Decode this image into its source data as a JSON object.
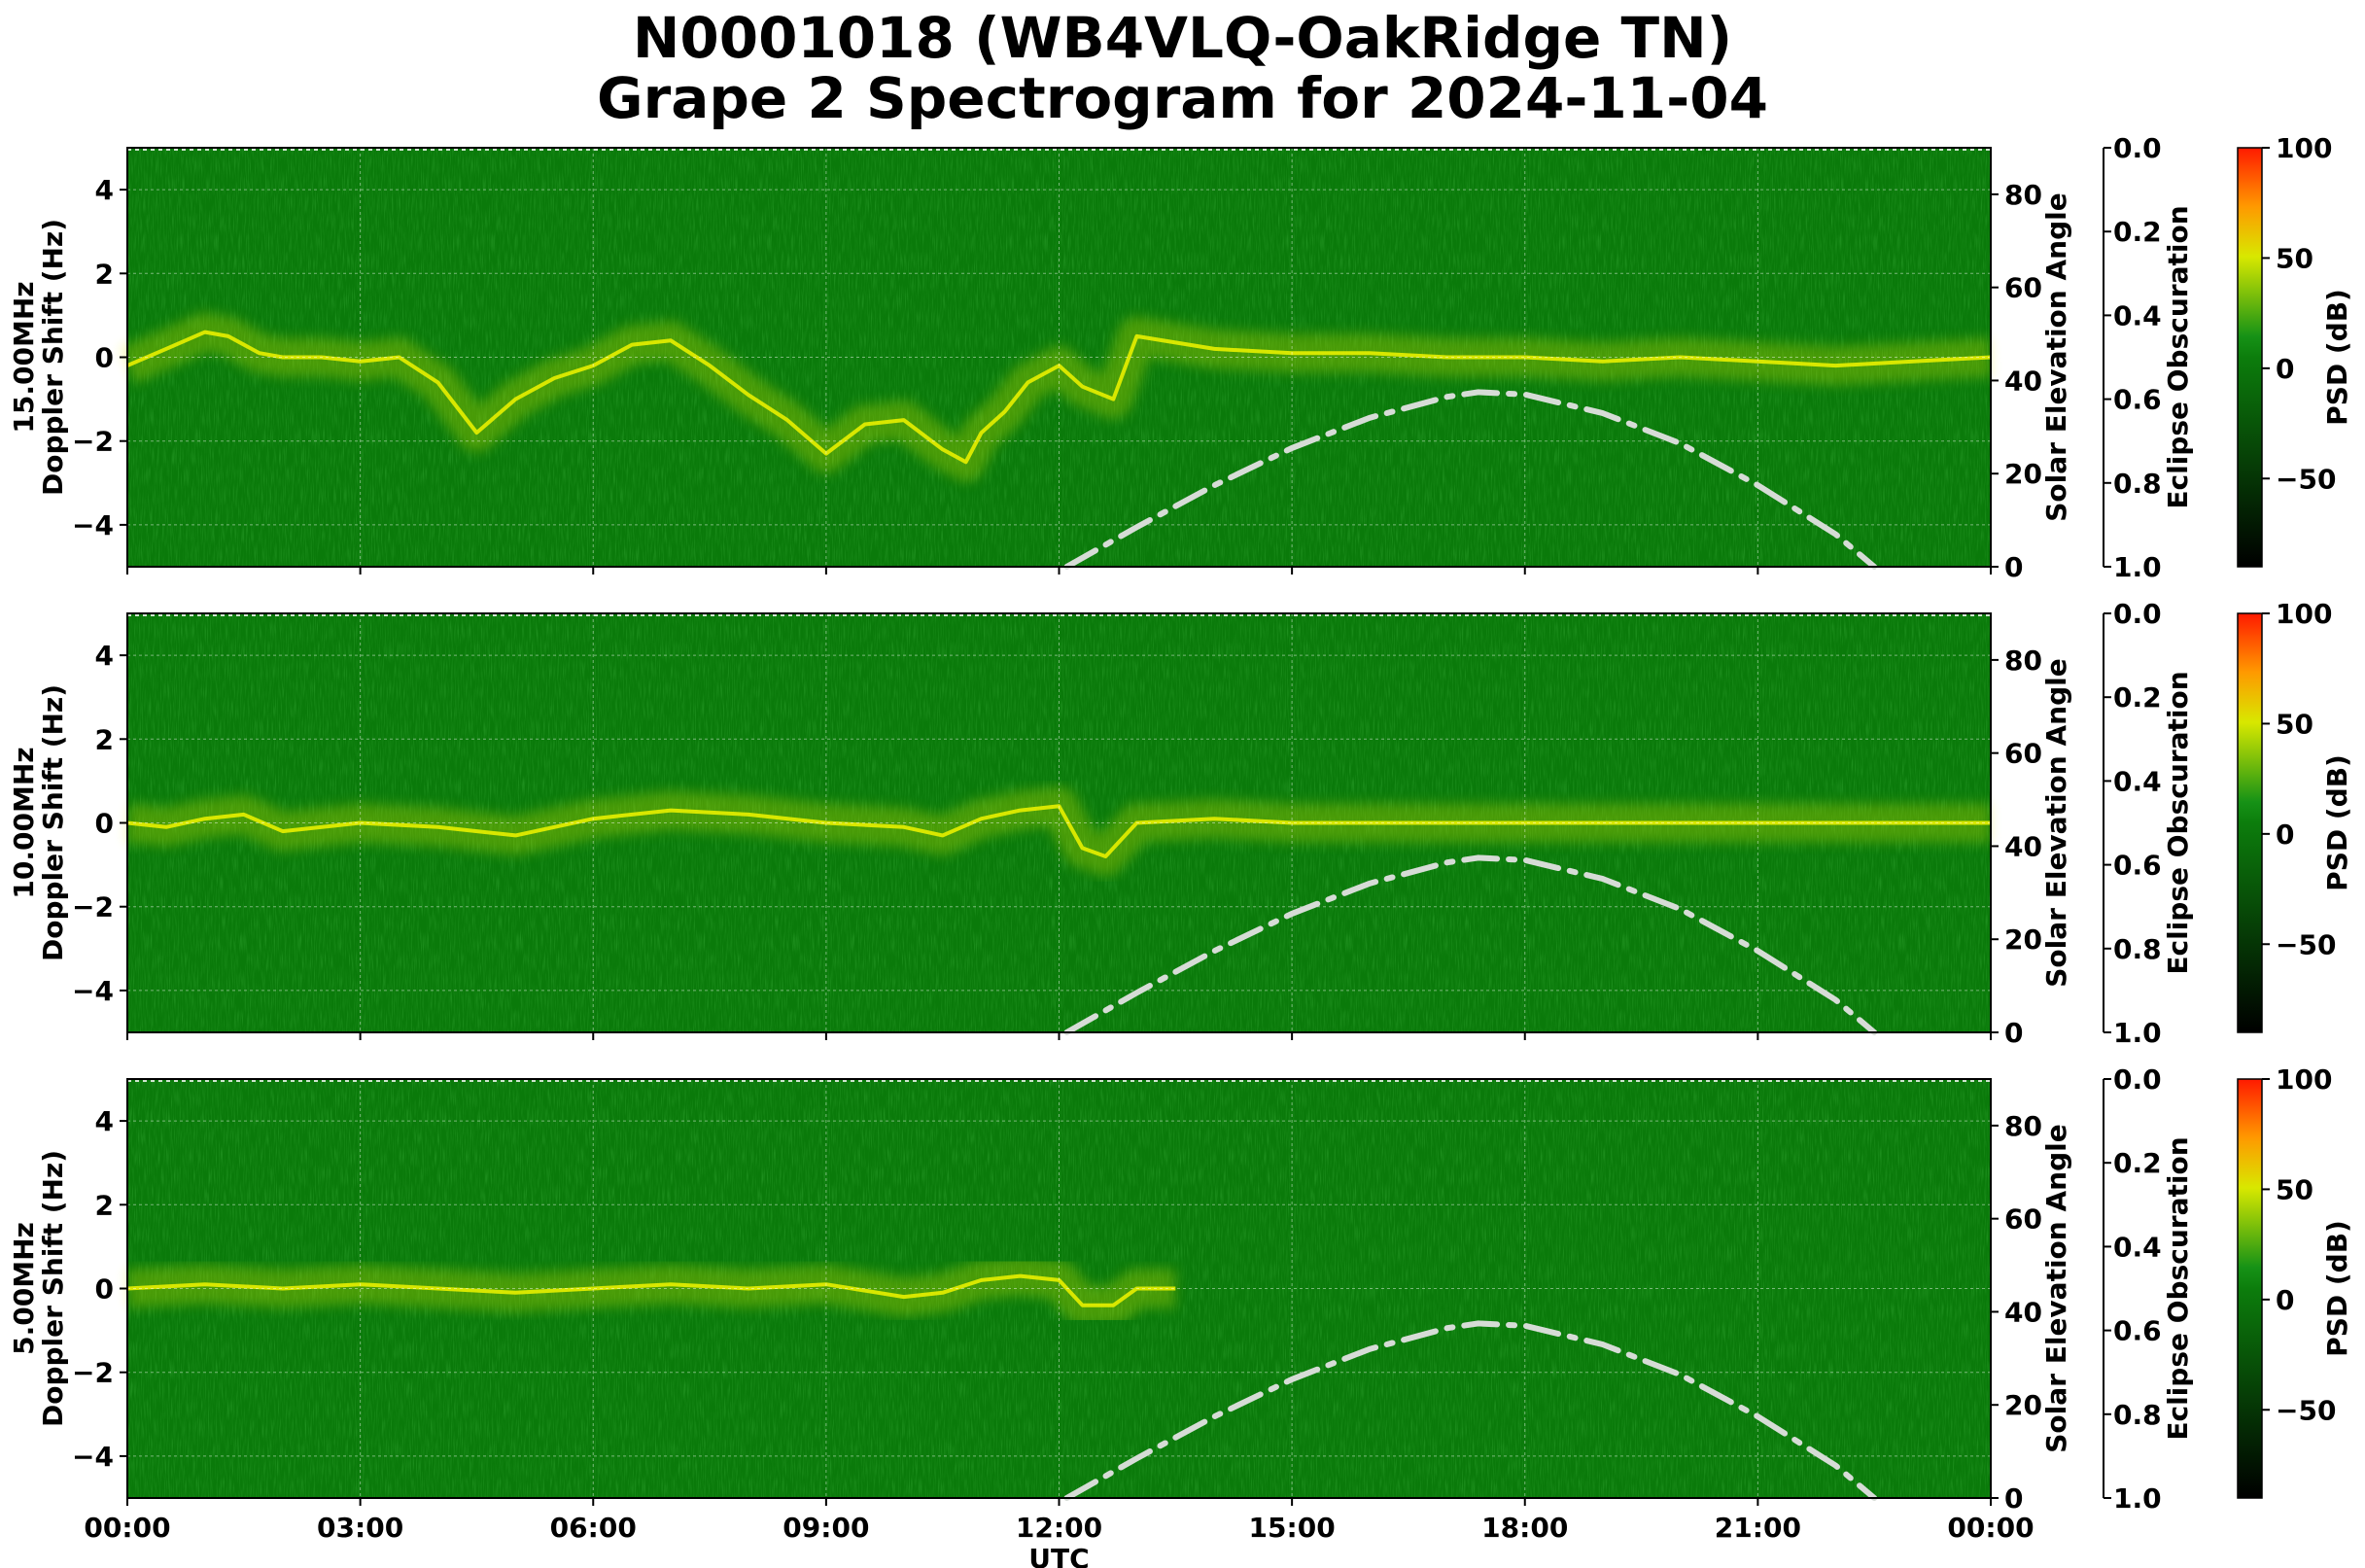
{
  "title": {
    "line1": "N0001018 (WB4VLQ-OakRidge TN)",
    "line2": "Grape 2 Spectrogram for 2024-11-04"
  },
  "chart_data": {
    "type": "heatmap",
    "xlabel": "UTC",
    "x_ticks": [
      "00:00",
      "03:00",
      "06:00",
      "09:00",
      "12:00",
      "15:00",
      "18:00",
      "21:00",
      "00:00"
    ],
    "xlim_hours": [
      0,
      24
    ],
    "grid": true,
    "panels": [
      {
        "name": "15.00MHz",
        "ylabel_line1": "15.00MHz",
        "ylabel_line2": "Doppler Shift (Hz)",
        "ylim": [
          -5,
          5
        ],
        "y_ticks": [
          "4",
          "2",
          "0",
          "−2",
          "−4"
        ],
        "doppler_trace": {
          "hours": [
            0,
            0.5,
            1,
            1.3,
            1.7,
            2,
            2.5,
            3,
            3.5,
            4,
            4.5,
            5,
            5.5,
            6,
            6.5,
            7,
            7.5,
            8,
            8.5,
            9,
            9.5,
            10,
            10.5,
            10.8,
            11,
            11.3,
            11.6,
            12,
            12.3,
            12.7,
            13,
            14,
            15,
            16,
            17,
            18,
            19,
            20,
            21,
            22,
            23,
            24
          ],
          "shift_hz": [
            -0.2,
            0.2,
            0.6,
            0.5,
            0.1,
            0.0,
            0.0,
            -0.1,
            0.0,
            -0.6,
            -1.8,
            -1.0,
            -0.5,
            -0.2,
            0.3,
            0.4,
            -0.2,
            -0.9,
            -1.5,
            -2.3,
            -1.6,
            -1.5,
            -2.2,
            -2.5,
            -1.8,
            -1.3,
            -0.6,
            -0.2,
            -0.7,
            -1.0,
            0.5,
            0.2,
            0.1,
            0.1,
            0.0,
            0.0,
            -0.1,
            0.0,
            -0.1,
            -0.2,
            -0.1,
            0.0
          ]
        },
        "solar_elevation": {
          "ylabel": "Solar Elevation Angle",
          "ylim": [
            0,
            90
          ],
          "y_ticks": [
            0,
            20,
            40,
            60,
            80
          ],
          "hours": [
            12.1,
            13,
            14,
            15,
            16,
            17,
            17.4,
            18,
            19,
            20,
            21,
            22,
            22.5
          ],
          "degrees": [
            0,
            8.5,
            17.5,
            25.5,
            32,
            36.5,
            37.5,
            37,
            33,
            26.5,
            17.5,
            7,
            0
          ]
        },
        "eclipse_axis": {
          "ylabel": "Eclipse Obscuration",
          "y_ticks": [
            "0.0",
            "0.2",
            "0.4",
            "0.6",
            "0.8",
            "1.0"
          ]
        },
        "colorbar": {
          "label": "PSD (dB)",
          "range": [
            -90,
            100
          ],
          "ticks": [
            "100",
            "50",
            "0",
            "−50"
          ]
        }
      },
      {
        "name": "10.00MHz",
        "ylabel_line1": "10.00MHz",
        "ylabel_line2": "Doppler Shift (Hz)",
        "ylim": [
          -5,
          5
        ],
        "y_ticks": [
          "4",
          "2",
          "0",
          "−2",
          "−4"
        ],
        "doppler_trace": {
          "hours": [
            0,
            0.5,
            1,
            1.5,
            2,
            3,
            4,
            5,
            6,
            7,
            8,
            9,
            10,
            10.5,
            11,
            11.5,
            12,
            12.3,
            12.6,
            13,
            14,
            15,
            16,
            18,
            20,
            22,
            24
          ],
          "shift_hz": [
            0.0,
            -0.1,
            0.1,
            0.2,
            -0.2,
            0.0,
            -0.1,
            -0.3,
            0.1,
            0.3,
            0.2,
            0.0,
            -0.1,
            -0.3,
            0.1,
            0.3,
            0.4,
            -0.6,
            -0.8,
            0.0,
            0.1,
            0.0,
            0.0,
            0.0,
            0.0,
            0.0,
            0.0
          ]
        },
        "solar_elevation": {
          "ylabel": "Solar Elevation Angle",
          "ylim": [
            0,
            90
          ],
          "y_ticks": [
            0,
            20,
            40,
            60,
            80
          ],
          "hours": [
            12.1,
            13,
            14,
            15,
            16,
            17,
            17.4,
            18,
            19,
            20,
            21,
            22,
            22.5
          ],
          "degrees": [
            0,
            8.5,
            17.5,
            25.5,
            32,
            36.5,
            37.5,
            37,
            33,
            26.5,
            17.5,
            7,
            0
          ]
        },
        "eclipse_axis": {
          "ylabel": "Eclipse Obscuration",
          "y_ticks": [
            "0.0",
            "0.2",
            "0.4",
            "0.6",
            "0.8",
            "1.0"
          ]
        },
        "colorbar": {
          "label": "PSD (dB)",
          "range": [
            -90,
            100
          ],
          "ticks": [
            "100",
            "50",
            "0",
            "−50"
          ]
        }
      },
      {
        "name": "5.00MHz",
        "ylabel_line1": "5.00MHz",
        "ylabel_line2": "Doppler Shift (Hz)",
        "ylim": [
          -5,
          5
        ],
        "y_ticks": [
          "4",
          "2",
          "0",
          "−2",
          "−4"
        ],
        "doppler_trace": {
          "hours": [
            0,
            1,
            2,
            3,
            4,
            5,
            6,
            7,
            8,
            9,
            10,
            10.5,
            11,
            11.5,
            12,
            12.3,
            12.7,
            13,
            13.5
          ],
          "shift_hz": [
            0.0,
            0.1,
            0.0,
            0.1,
            0.0,
            -0.1,
            0.0,
            0.1,
            0.0,
            0.1,
            -0.2,
            -0.1,
            0.2,
            0.3,
            0.2,
            -0.4,
            -0.4,
            0.0,
            0.0
          ]
        },
        "solar_elevation": {
          "ylabel": "Solar Elevation Angle",
          "ylim": [
            0,
            90
          ],
          "y_ticks": [
            0,
            20,
            40,
            60,
            80
          ],
          "hours": [
            12.1,
            13,
            14,
            15,
            16,
            17,
            17.4,
            18,
            19,
            20,
            21,
            22,
            22.5
          ],
          "degrees": [
            0,
            8.5,
            17.5,
            25.5,
            32,
            36.5,
            37.5,
            37,
            33,
            26.5,
            17.5,
            7,
            0
          ]
        },
        "eclipse_axis": {
          "ylabel": "Eclipse Obscuration",
          "y_ticks": [
            "0.0",
            "0.2",
            "0.4",
            "0.6",
            "0.8",
            "1.0"
          ]
        },
        "colorbar": {
          "label": "PSD (dB)",
          "range": [
            -90,
            100
          ],
          "ticks": [
            "100",
            "50",
            "0",
            "−50"
          ]
        }
      }
    ]
  },
  "colors": {
    "background_green": "#0a7a0a",
    "trace_yellow": "#e8f000",
    "elevation_curve": "#d6dcd6",
    "grid": "#ffffff"
  }
}
